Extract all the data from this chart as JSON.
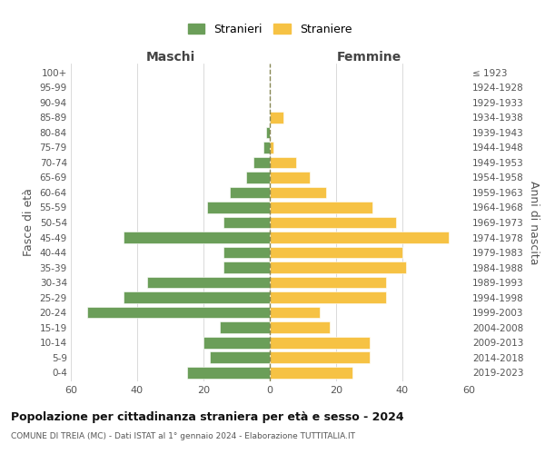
{
  "age_groups": [
    "0-4",
    "5-9",
    "10-14",
    "15-19",
    "20-24",
    "25-29",
    "30-34",
    "35-39",
    "40-44",
    "45-49",
    "50-54",
    "55-59",
    "60-64",
    "65-69",
    "70-74",
    "75-79",
    "80-84",
    "85-89",
    "90-94",
    "95-99",
    "100+"
  ],
  "birth_years": [
    "2019-2023",
    "2014-2018",
    "2009-2013",
    "2004-2008",
    "1999-2003",
    "1994-1998",
    "1989-1993",
    "1984-1988",
    "1979-1983",
    "1974-1978",
    "1969-1973",
    "1964-1968",
    "1959-1963",
    "1954-1958",
    "1949-1953",
    "1944-1948",
    "1939-1943",
    "1934-1938",
    "1929-1933",
    "1924-1928",
    "≤ 1923"
  ],
  "males": [
    25,
    18,
    20,
    15,
    55,
    44,
    37,
    14,
    14,
    44,
    14,
    19,
    12,
    7,
    5,
    2,
    1,
    0,
    0,
    0,
    0
  ],
  "females": [
    25,
    30,
    30,
    18,
    15,
    35,
    35,
    41,
    40,
    54,
    38,
    31,
    17,
    12,
    8,
    1,
    0,
    4,
    0,
    0,
    0
  ],
  "male_color": "#6b9e59",
  "female_color": "#f6c244",
  "background_color": "#ffffff",
  "grid_color": "#cccccc",
  "title": "Popolazione per cittadinanza straniera per età e sesso - 2024",
  "subtitle": "COMUNE DI TREIA (MC) - Dati ISTAT al 1° gennaio 2024 - Elaborazione TUTTITALIA.IT",
  "xlabel_left": "Maschi",
  "xlabel_right": "Femmine",
  "ylabel_left": "Fasce di età",
  "ylabel_right": "Anni di nascita",
  "legend_male": "Stranieri",
  "legend_female": "Straniere",
  "xlim": 60,
  "center_line_color": "#888855"
}
